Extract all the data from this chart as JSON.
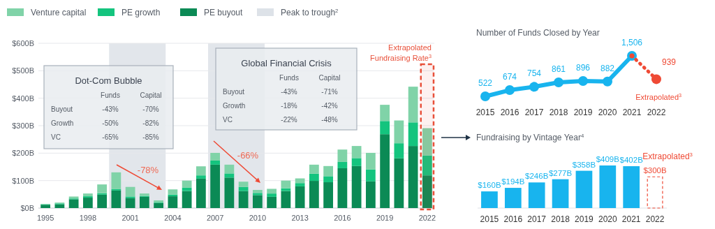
{
  "chart_data": [
    {
      "type": "bar",
      "stacked": true,
      "x": [
        1995,
        1996,
        1997,
        1998,
        1999,
        2000,
        2001,
        2002,
        2003,
        2004,
        2005,
        2006,
        2007,
        2008,
        2009,
        2010,
        2011,
        2012,
        2013,
        2014,
        2015,
        2016,
        2017,
        2018,
        2019,
        2020,
        2021,
        2022
      ],
      "xlim": [
        1994.5,
        2022.5
      ],
      "xticks": [
        1995,
        1998,
        2001,
        2004,
        2007,
        2010,
        2013,
        2016,
        2019,
        2022
      ],
      "ylim": [
        0,
        600
      ],
      "yticks": [
        {
          "value": 0,
          "label": "$0B"
        },
        {
          "value": 100,
          "label": "$100B"
        },
        {
          "value": 200,
          "label": "$200B"
        },
        {
          "value": 300,
          "label": "$300B"
        },
        {
          "value": 400,
          "label": "$400B"
        },
        {
          "value": 500,
          "label": "$500B"
        },
        {
          "value": 600,
          "label": "$600B"
        }
      ],
      "grid": "y",
      "legend": "top left",
      "series": [
        {
          "name": "PE buyout",
          "color": "#0b8a55",
          "values": [
            12,
            14,
            32,
            38,
            49,
            64,
            36,
            41,
            18,
            43,
            62,
            107,
            158,
            111,
            62,
            47,
            41,
            62,
            79,
            99,
            94,
            145,
            153,
            97,
            269,
            181,
            226,
            119
          ]
        },
        {
          "name": "PE growth",
          "color": "#14c47e",
          "values": [
            2,
            3,
            3,
            5,
            5,
            5,
            6,
            3,
            2,
            6,
            12,
            12,
            15,
            15,
            15,
            8,
            12,
            10,
            12,
            26,
            22,
            23,
            29,
            44,
            48,
            55,
            86,
            73
          ]
        },
        {
          "name": "Venture capital",
          "color": "#80d3a8",
          "values": [
            1,
            3,
            7,
            10,
            32,
            61,
            35,
            9,
            8,
            19,
            26,
            33,
            28,
            32,
            19,
            11,
            17,
            28,
            17,
            33,
            37,
            45,
            44,
            60,
            59,
            83,
            130,
            99
          ]
        }
      ],
      "bands": [
        {
          "axis": "x",
          "from": 1999.5,
          "to": 2003.5,
          "label": "Peak to trough$^{2}$",
          "color": "#dde2e8"
        },
        {
          "axis": "x",
          "from": 2006.5,
          "to": 2010.5,
          "color": "#dde2e8"
        },
        {
          "axis": "x",
          "from": 2021.55,
          "to": 2022.45,
          "label": "Extrapolated Fundraising Rate$^{3}$",
          "color": "#e8503a"
        }
      ],
      "annotations": [
        "-78%",
        "-66%"
      ]
    },
    {
      "type": "line",
      "title": "Number of Funds Closed by Year",
      "categories": [
        "2015",
        "2016",
        "2017",
        "2018",
        "2019",
        "2020",
        "2021",
        "2022"
      ],
      "marker": "circle",
      "series": [
        {
          "color": "#18b4ee",
          "line_style": "solid",
          "values": [
            522,
            674,
            754,
            861,
            896,
            882,
            1506,
            null
          ],
          "value_labels": [
            "522",
            "674",
            "754",
            "861",
            "896",
            "882",
            "1,506",
            null
          ]
        },
        {
          "name": "Extrapolated$^{3}$",
          "color": "#ef4a35",
          "line_style": "dotted",
          "values": [
            null,
            null,
            null,
            null,
            null,
            null,
            1506,
            939
          ],
          "value_labels": [
            null,
            null,
            null,
            null,
            null,
            null,
            null,
            "939"
          ]
        }
      ]
    },
    {
      "type": "bar",
      "title": "Fundraising by Vintage Year$^{4}$",
      "categories": [
        "2015",
        "2016",
        "2017",
        "2018",
        "2019",
        "2020",
        "2021",
        "2022"
      ],
      "series": [
        {
          "color": "#18b4ee",
          "values": [
            160,
            194,
            246,
            277,
            358,
            409,
            402,
            null
          ],
          "value_labels": [
            "$160B",
            "$194B",
            "$246B",
            "$277B",
            "$358B",
            "$409B",
            "$402B",
            null
          ]
        },
        {
          "name": "Extrapolated$^{3}$",
          "color": "#ef4a35",
          "line_style": "dashed",
          "values": [
            null,
            null,
            null,
            null,
            null,
            null,
            null,
            300
          ],
          "value_labels": [
            null,
            null,
            null,
            null,
            null,
            null,
            null,
            "$300B"
          ]
        }
      ]
    },
    {
      "type": "other",
      "title": "Dot-Com Bubble",
      "categories": [
        "Buyout",
        "Growth",
        "VC"
      ],
      "series": [
        {
          "name": "Funds",
          "values": [
            -43,
            -50,
            -65
          ],
          "value_labels": [
            "-43%",
            "-50%",
            "-65%"
          ]
        },
        {
          "name": "Capital",
          "values": [
            -70,
            -82,
            -85
          ],
          "value_labels": [
            "-70%",
            "-82%",
            "-85%"
          ]
        }
      ]
    },
    {
      "type": "other",
      "title": "Global Financial Crisis",
      "categories": [
        "Buyout",
        "Growth",
        "VC"
      ],
      "series": [
        {
          "name": "Funds",
          "values": [
            -43,
            -18,
            -22
          ],
          "value_labels": [
            "-43%",
            "-18%",
            "-22%"
          ]
        },
        {
          "name": "Capital",
          "values": [
            -71,
            -42,
            -48
          ],
          "value_labels": [
            "-71%",
            "-42%",
            "-48%"
          ]
        }
      ]
    }
  ]
}
